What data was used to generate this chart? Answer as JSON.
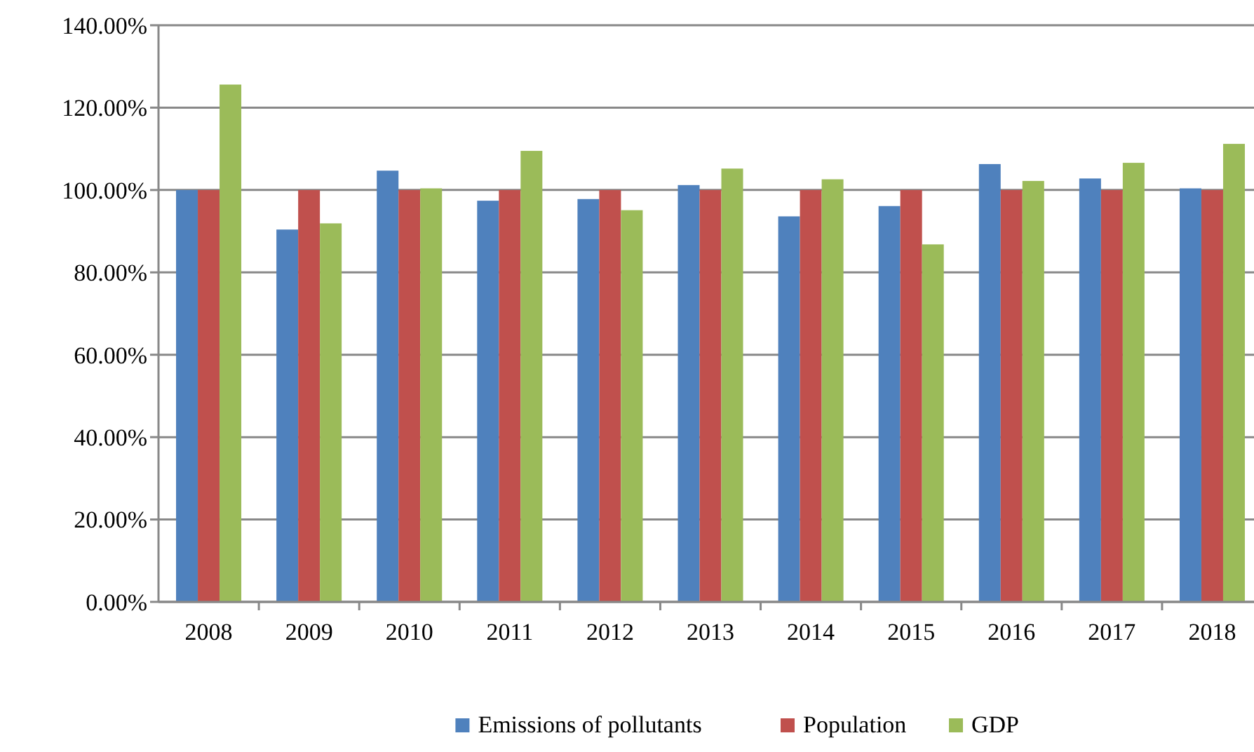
{
  "chart_data": {
    "type": "bar",
    "categories": [
      "2008",
      "2009",
      "2010",
      "2011",
      "2012",
      "2013",
      "2014",
      "2015",
      "2016",
      "2017",
      "2018"
    ],
    "series": [
      {
        "name": "Emissions of pollutants",
        "color": "#4f81bd",
        "values": [
          100,
          90.4,
          104.7,
          97.4,
          97.8,
          101.2,
          93.6,
          96.1,
          106.3,
          102.8,
          100.4
        ]
      },
      {
        "name": "Population",
        "color": "#c0504d",
        "values": [
          100,
          100,
          100,
          100,
          100,
          100,
          100,
          100,
          100,
          100,
          100
        ]
      },
      {
        "name": "GDP",
        "color": "#9bbb59",
        "values": [
          125.6,
          91.9,
          100.4,
          109.5,
          95.1,
          105.2,
          102.6,
          86.8,
          102.2,
          106.6,
          111.2
        ]
      }
    ],
    "ylim": [
      0,
      140
    ],
    "yticks": [
      {
        "value": 0,
        "label": "0.00%"
      },
      {
        "value": 20,
        "label": "20.00%"
      },
      {
        "value": 40,
        "label": "40.00%"
      },
      {
        "value": 60,
        "label": "60.00%"
      },
      {
        "value": 80,
        "label": "80.00%"
      },
      {
        "value": 100,
        "label": "100.00%"
      },
      {
        "value": 120,
        "label": "120.00%"
      },
      {
        "value": 140,
        "label": "140.00%"
      }
    ],
    "grid": "y",
    "legend": "bottom"
  }
}
